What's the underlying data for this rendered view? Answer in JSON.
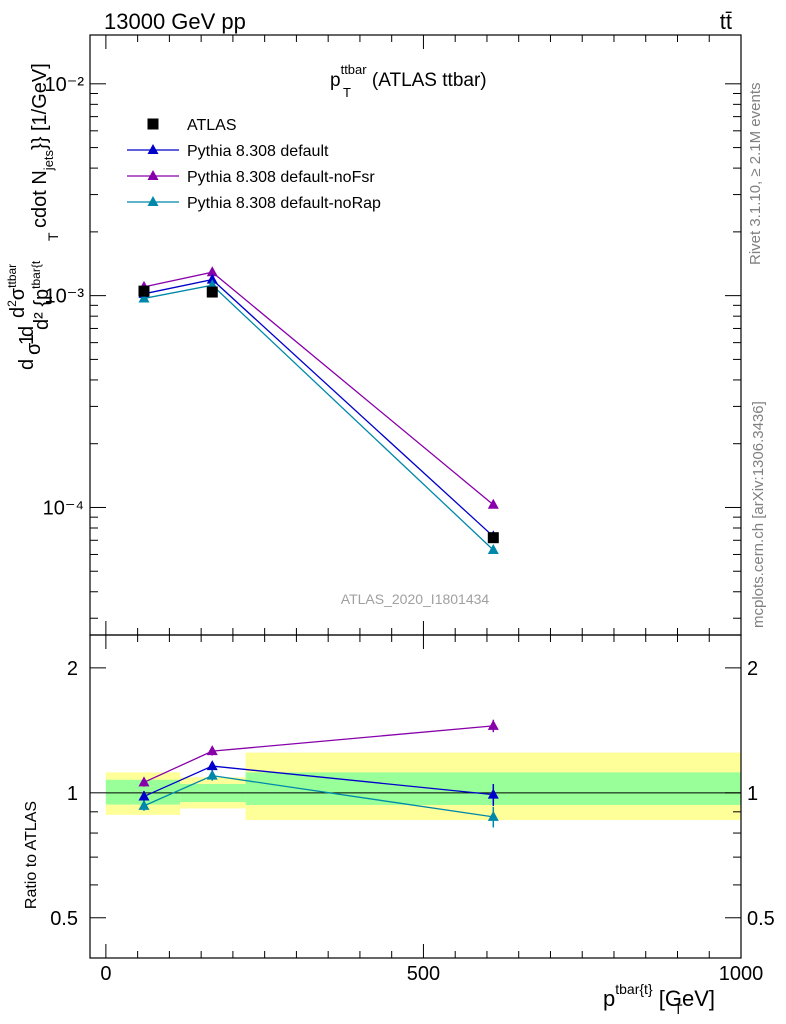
{
  "header": {
    "left": "13000 GeV pp",
    "right": "tt̄"
  },
  "title": {
    "main": "p",
    "sup": "ttbar",
    "sub": "T",
    "rest": " (ATLAS ttbar)"
  },
  "side_labels": {
    "rivet": "Rivet 3.1.10, ≥ 2.1M events",
    "mcplots": "mcplots.cern.ch [arXiv:1306.3436]"
  },
  "watermark": "ATLAS_2020_I1801434",
  "colors": {
    "data": "#000000",
    "default": "#0000cc",
    "noFsr": "#8800aa",
    "noRap": "#0088aa",
    "band_inner": "#99ff99",
    "band_outer": "#ffff99"
  },
  "chart_data": [
    {
      "type": "line",
      "panel": "main",
      "ylabel": "d 1/σ d²σ^ttbar / d² {p_T^tbar{t}} cdot N_jets}} [1/GeV]",
      "ylabel_parts": {
        "frac1_num": "d",
        "frac1_den": "σ",
        "one": "1",
        "d2": "d",
        "sigma": "σ",
        "sup": "ttbar",
        "den": "d² {p",
        "den_sup": "tbar{t",
        "T": "T",
        "tail": "cdot N",
        "tail_sub": "jets",
        "tail_end": "}} [1/GeV]"
      },
      "yscale": "log",
      "ylim": [
        2.5e-05,
        0.017
      ],
      "xlim": [
        -25,
        1000
      ],
      "y_tick_labels": [
        "10⁻⁴",
        "10⁻³",
        "10⁻²"
      ],
      "legend_position": "top-left",
      "series": [
        {
          "name": "ATLAS",
          "marker": "square",
          "x": [
            60,
            167.5,
            610
          ],
          "y": [
            0.00105,
            0.00104,
            7.2e-05
          ]
        },
        {
          "name": "Pythia 8.308 default",
          "marker": "triangle",
          "x": [
            60,
            167.5,
            610
          ],
          "y": [
            0.00102,
            0.00119,
            7.3e-05
          ]
        },
        {
          "name": "Pythia 8.308 default-noFsr",
          "marker": "triangle",
          "x": [
            60,
            167.5,
            610
          ],
          "y": [
            0.0011,
            0.00129,
            0.000103
          ]
        },
        {
          "name": "Pythia 8.308 default-noRap",
          "marker": "triangle",
          "x": [
            60,
            167.5,
            610
          ],
          "y": [
            0.00097,
            0.00112,
            6.3e-05
          ]
        }
      ]
    },
    {
      "type": "line",
      "panel": "ratio",
      "ylabel": "Ratio to ATLAS",
      "xlabel": "p_T^tbar{t}} [GeV]",
      "xlabel_parts": {
        "p": "p",
        "sup": "tbar{t",
        "brace": "}",
        "T": "T",
        "unit": " [GeV]"
      },
      "yscale": "log",
      "ylim": [
        0.4,
        2.4
      ],
      "xlim": [
        -25,
        1000
      ],
      "x_tick_labels": [
        "0",
        "500",
        "1000"
      ],
      "y_tick_labels": [
        "0.5",
        "1",
        "2"
      ],
      "bands": [
        {
          "x": [
            0,
            117
          ],
          "inner": [
            0.937,
            1.075
          ],
          "outer": [
            0.885,
            1.12
          ]
        },
        {
          "x": [
            117,
            220
          ],
          "inner": [
            0.95,
            1.05
          ],
          "outer": [
            0.917,
            1.09
          ]
        },
        {
          "x": [
            220,
            1000
          ],
          "inner": [
            0.935,
            1.12
          ],
          "outer": [
            0.86,
            1.25
          ]
        }
      ],
      "series": [
        {
          "name": "Pythia 8.308 default",
          "x": [
            60,
            167.5,
            610
          ],
          "y": [
            0.98,
            1.16,
            0.99
          ],
          "err": [
            0.03,
            0.03,
            0.06
          ]
        },
        {
          "name": "Pythia 8.308 default-noFsr",
          "x": [
            60,
            167.5,
            610
          ],
          "y": [
            1.06,
            1.26,
            1.45
          ],
          "err": [
            0.025,
            0.03,
            0.05
          ]
        },
        {
          "name": "Pythia 8.308 default-noRap",
          "x": [
            60,
            167.5,
            610
          ],
          "y": [
            0.93,
            1.1,
            0.875
          ],
          "err": [
            0.025,
            0.03,
            0.05
          ]
        }
      ]
    }
  ]
}
